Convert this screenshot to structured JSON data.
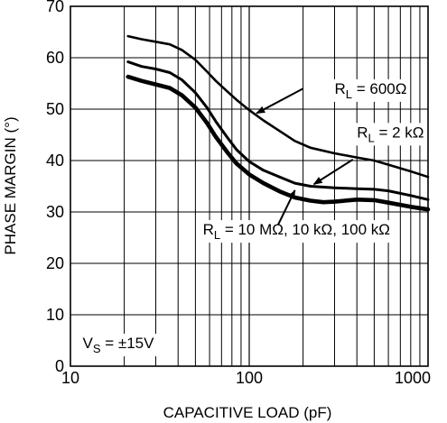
{
  "chart_data": {
    "type": "line",
    "xlabel": "CAPACITIVE LOAD (pF)",
    "ylabel": "PHASE MARGIN (°)",
    "x_scale": "log",
    "xlim": [
      10,
      1000
    ],
    "ylim": [
      0,
      70
    ],
    "x_ticks": [
      "10",
      "100",
      "1000"
    ],
    "y_ticks": [
      "0",
      "10",
      "20",
      "30",
      "40",
      "50",
      "60",
      "70"
    ],
    "grid": true,
    "series": [
      {
        "name": "RL = 600Ω",
        "points": [
          [
            21,
            64.2
          ],
          [
            25,
            63.6
          ],
          [
            30,
            63.1
          ],
          [
            36,
            62.6
          ],
          [
            42,
            61.5
          ],
          [
            50,
            59.6
          ],
          [
            58,
            57.3
          ],
          [
            65,
            55.5
          ],
          [
            75,
            53.5
          ],
          [
            85,
            51.8
          ],
          [
            100,
            49.8
          ],
          [
            120,
            47.8
          ],
          [
            150,
            45.6
          ],
          [
            180,
            43.8
          ],
          [
            220,
            42.5
          ],
          [
            300,
            41.4
          ],
          [
            400,
            40.6
          ],
          [
            500,
            40.0
          ],
          [
            600,
            39.2
          ],
          [
            800,
            37.9
          ],
          [
            1000,
            36.8
          ]
        ]
      },
      {
        "name": "RL = 2 kΩ",
        "points": [
          [
            21,
            59.2
          ],
          [
            25,
            58.3
          ],
          [
            30,
            57.8
          ],
          [
            36,
            57.1
          ],
          [
            42,
            55.7
          ],
          [
            50,
            53.2
          ],
          [
            58,
            50.3
          ],
          [
            65,
            47.6
          ],
          [
            75,
            44.6
          ],
          [
            85,
            42.1
          ],
          [
            100,
            39.8
          ],
          [
            120,
            38.1
          ],
          [
            150,
            36.7
          ],
          [
            180,
            35.6
          ],
          [
            220,
            35.0
          ],
          [
            300,
            34.7
          ],
          [
            400,
            34.5
          ],
          [
            500,
            34.4
          ],
          [
            600,
            34.1
          ],
          [
            800,
            33.2
          ],
          [
            1000,
            32.4
          ]
        ]
      },
      {
        "name": "RL = 10 MΩ, 10 kΩ, 100 kΩ",
        "points": [
          [
            21,
            56.3
          ],
          [
            25,
            55.5
          ],
          [
            30,
            54.8
          ],
          [
            36,
            54.1
          ],
          [
            42,
            52.7
          ],
          [
            50,
            50.3
          ],
          [
            58,
            47.3
          ],
          [
            65,
            44.6
          ],
          [
            75,
            41.7
          ],
          [
            85,
            39.4
          ],
          [
            100,
            37.3
          ],
          [
            120,
            35.6
          ],
          [
            150,
            33.9
          ],
          [
            180,
            32.8
          ],
          [
            220,
            32.2
          ],
          [
            260,
            31.9
          ],
          [
            300,
            32.0
          ],
          [
            400,
            32.4
          ],
          [
            500,
            32.3
          ],
          [
            600,
            31.8
          ],
          [
            800,
            31.0
          ],
          [
            1000,
            30.5
          ]
        ]
      }
    ],
    "annotations": [
      {
        "main": "R",
        "sub": "L",
        "rest": " = 600Ω",
        "x": 300,
        "y": 53
      },
      {
        "main": "R",
        "sub": "L",
        "rest": " = 2 kΩ",
        "x": 400,
        "y": 44.5
      },
      {
        "main": "R",
        "sub": "L",
        "rest": " = 10 MΩ, 10 kΩ, 100 kΩ",
        "x": 55,
        "y": 25.6
      },
      {
        "main": "V",
        "sub": "S",
        "rest": " = ±15V",
        "x": 11.7,
        "y": 3.5
      }
    ],
    "arrows": [
      {
        "from": [
          200,
          54
        ],
        "to": [
          110,
          49.2
        ]
      },
      {
        "from": [
          380,
          40.2
        ],
        "to": [
          230,
          35.4
        ]
      },
      {
        "from": [
          145,
          27.5
        ],
        "to": [
          180,
          34.2
        ]
      }
    ]
  }
}
